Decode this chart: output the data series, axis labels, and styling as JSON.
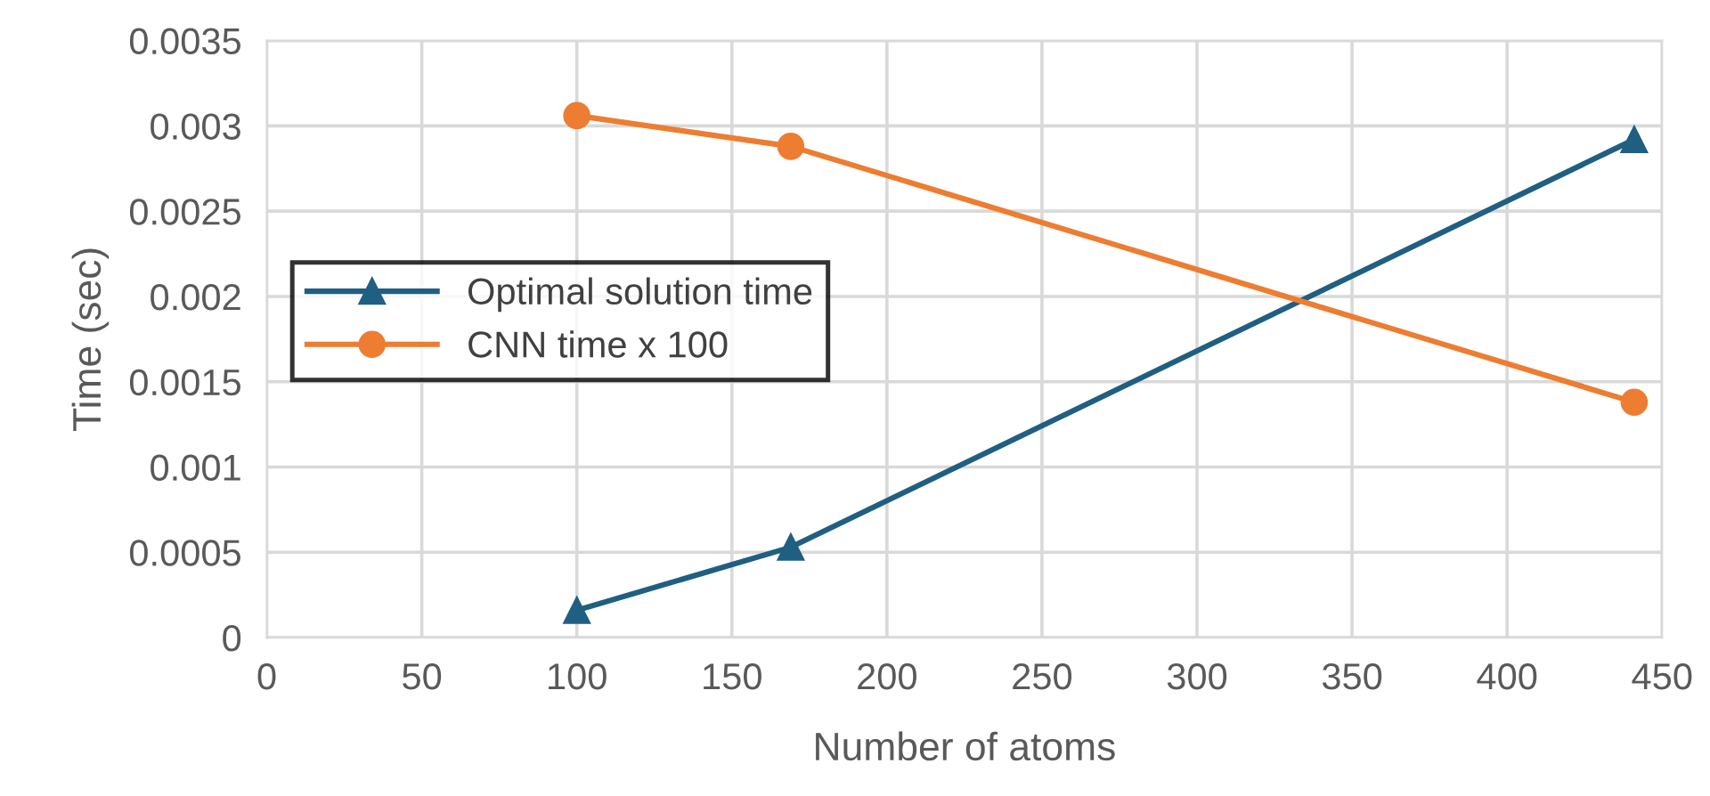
{
  "chart_data": {
    "type": "line",
    "xlabel": "Number of atoms",
    "ylabel": "Time (sec)",
    "xlim": [
      0,
      450
    ],
    "xticks": [
      0,
      50,
      100,
      150,
      200,
      250,
      300,
      350,
      400,
      450
    ],
    "ylim": [
      0,
      0.0035
    ],
    "yticks": [
      {
        "value": 0,
        "label": "0"
      },
      {
        "value": 0.0005,
        "label": "0.0005"
      },
      {
        "value": 0.001,
        "label": "0.001"
      },
      {
        "value": 0.0015,
        "label": "0.0015"
      },
      {
        "value": 0.002,
        "label": "0.002"
      },
      {
        "value": 0.0025,
        "label": "0.0025"
      },
      {
        "value": 0.003,
        "label": "0.003"
      },
      {
        "value": 0.0035,
        "label": "0.0035"
      }
    ],
    "x": [
      100,
      169,
      441
    ],
    "series": [
      {
        "name": "Optimal solution time",
        "color": "#1f5f82",
        "marker": "triangle",
        "values": [
          0.00016,
          0.00053,
          0.00292
        ]
      },
      {
        "name": "CNN time x 100",
        "color": "#ed7d31",
        "marker": "circle",
        "values": [
          0.00306,
          0.00288,
          0.00138
        ]
      }
    ],
    "grid": true,
    "legend": "left",
    "line_style": "solid"
  }
}
